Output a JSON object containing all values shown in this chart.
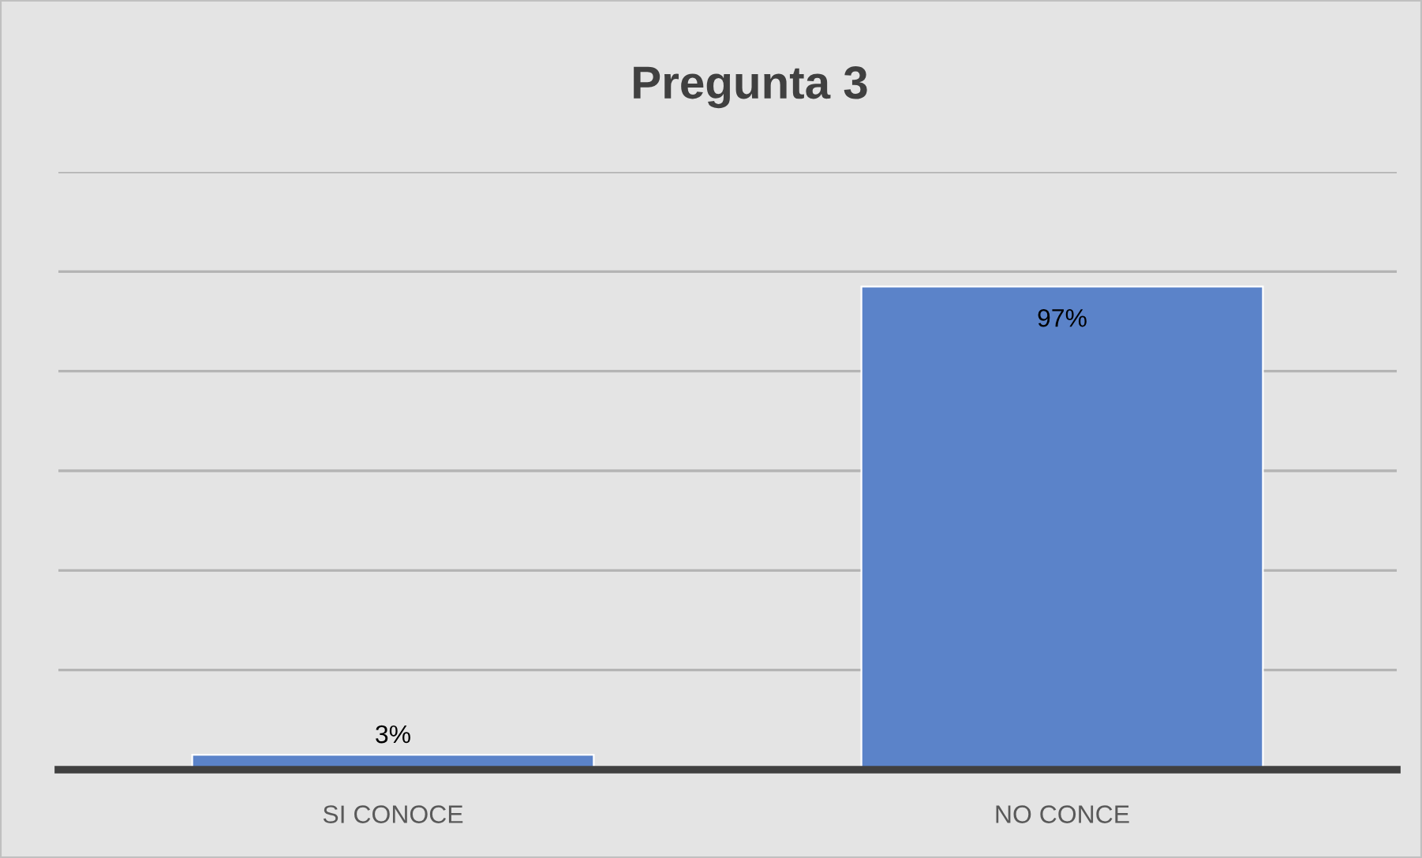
{
  "chart_data": {
    "type": "bar",
    "title": "Pregunta 3",
    "categories": [
      "SI CONOCE",
      "NO CONCE"
    ],
    "values": [
      3,
      97
    ],
    "color": "#5b83c9",
    "value_labels": [
      "3%",
      "97%"
    ],
    "ylim": [
      0,
      120
    ],
    "yticks": [
      {
        "value": 0,
        "label": null
      },
      {
        "value": 20,
        "label": null
      },
      {
        "value": 40,
        "label": null
      },
      {
        "value": 60,
        "label": null
      },
      {
        "value": 80,
        "label": null
      },
      {
        "value": 100,
        "label": null
      },
      {
        "value": 120,
        "label": null
      }
    ],
    "tick_labels": "x",
    "grid": "y"
  }
}
